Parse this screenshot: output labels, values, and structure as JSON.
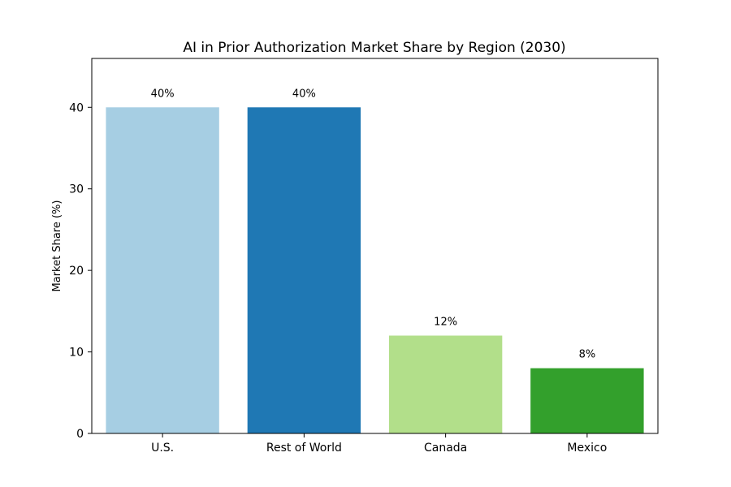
{
  "chart_data": {
    "type": "bar",
    "title": "AI in Prior Authorization Market Share by Region (2030)",
    "xlabel": "",
    "ylabel": "Market Share (%)",
    "categories": [
      "U.S.",
      "Rest of World",
      "Canada",
      "Mexico"
    ],
    "values": [
      40,
      40,
      12,
      8
    ],
    "data_labels": [
      "40%",
      "40%",
      "12%",
      "8%"
    ],
    "colors": [
      "#a6cee3",
      "#1f78b4",
      "#b2df8a",
      "#33a02c"
    ],
    "ylim": [
      0,
      46
    ],
    "yticks": [
      0,
      10,
      20,
      30,
      40
    ],
    "grid": false,
    "legend": "none"
  }
}
